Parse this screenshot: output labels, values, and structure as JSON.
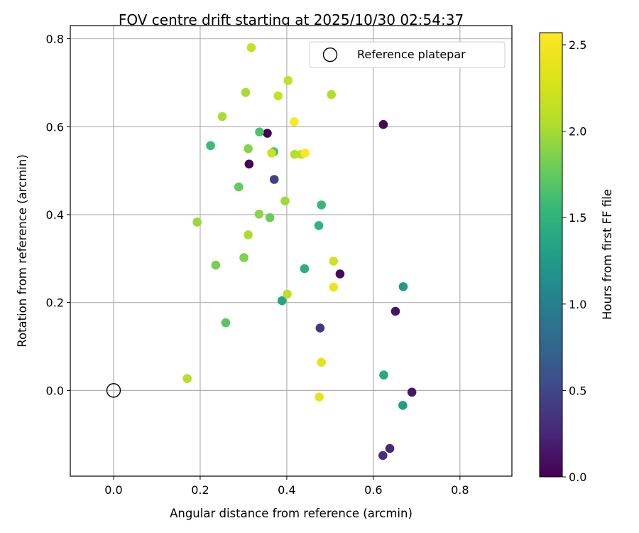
{
  "chart_data": {
    "type": "scatter",
    "title": "FOV centre drift starting at 2025/10/30 02:54:37",
    "xlabel": "Angular distance from reference (arcmin)",
    "ylabel": "Rotation from reference (arcmin)",
    "xlim": [
      -0.1,
      0.92
    ],
    "ylim": [
      -0.195,
      0.83
    ],
    "xticks": [
      0.0,
      0.2,
      0.4,
      0.6,
      0.8
    ],
    "xtick_labels": [
      "0.0",
      "0.2",
      "0.4",
      "0.6",
      "0.8"
    ],
    "yticks": [
      0.0,
      0.2,
      0.4,
      0.6,
      0.8
    ],
    "ytick_labels": [
      "0.0",
      "0.2",
      "0.4",
      "0.6",
      "0.8"
    ],
    "grid": true,
    "legend": {
      "placement": "top-right",
      "entries": [
        "Reference platepar"
      ]
    },
    "reference_point": {
      "x": 0.0,
      "y": 0.0,
      "label": "Reference platepar"
    },
    "colorbar": {
      "label": "Hours from first FF file",
      "colormap": "viridis",
      "range": [
        0.0,
        2.57
      ],
      "ticks": [
        0.0,
        0.5,
        1.0,
        1.5,
        2.0,
        2.5
      ],
      "tick_labels": [
        "0.0",
        "0.5",
        "1.0",
        "1.5",
        "2.0",
        "2.5"
      ]
    },
    "points": [
      {
        "x": 0.355,
        "y": 0.585,
        "c": 0.0
      },
      {
        "x": 0.313,
        "y": 0.515,
        "c": 0.02
      },
      {
        "x": 0.623,
        "y": 0.605,
        "c": 0.05
      },
      {
        "x": 0.523,
        "y": 0.265,
        "c": 0.08
      },
      {
        "x": 0.651,
        "y": 0.18,
        "c": 0.12
      },
      {
        "x": 0.689,
        "y": -0.004,
        "c": 0.15
      },
      {
        "x": 0.638,
        "y": -0.132,
        "c": 0.25
      },
      {
        "x": 0.622,
        "y": -0.148,
        "c": 0.32
      },
      {
        "x": 0.477,
        "y": 0.142,
        "c": 0.38
      },
      {
        "x": 0.371,
        "y": 0.48,
        "c": 0.45
      },
      {
        "x": 0.668,
        "y": -0.034,
        "c": 1.3
      },
      {
        "x": 0.669,
        "y": 0.236,
        "c": 1.25
      },
      {
        "x": 0.624,
        "y": 0.035,
        "c": 1.4
      },
      {
        "x": 0.389,
        "y": 0.204,
        "c": 1.35
      },
      {
        "x": 0.441,
        "y": 0.277,
        "c": 1.45
      },
      {
        "x": 0.474,
        "y": 0.375,
        "c": 1.5
      },
      {
        "x": 0.48,
        "y": 0.422,
        "c": 1.55
      },
      {
        "x": 0.224,
        "y": 0.557,
        "c": 1.58
      },
      {
        "x": 0.37,
        "y": 0.543,
        "c": 1.6
      },
      {
        "x": 0.337,
        "y": 0.588,
        "c": 1.65
      },
      {
        "x": 0.259,
        "y": 0.154,
        "c": 1.7
      },
      {
        "x": 0.289,
        "y": 0.463,
        "c": 1.75
      },
      {
        "x": 0.361,
        "y": 0.393,
        "c": 1.78
      },
      {
        "x": 0.236,
        "y": 0.285,
        "c": 1.82
      },
      {
        "x": 0.301,
        "y": 0.302,
        "c": 1.85
      },
      {
        "x": 0.311,
        "y": 0.55,
        "c": 1.88
      },
      {
        "x": 0.336,
        "y": 0.401,
        "c": 1.9
      },
      {
        "x": 0.193,
        "y": 0.383,
        "c": 1.95
      },
      {
        "x": 0.396,
        "y": 0.431,
        "c": 1.98
      },
      {
        "x": 0.305,
        "y": 0.678,
        "c": 2.0
      },
      {
        "x": 0.251,
        "y": 0.623,
        "c": 2.02
      },
      {
        "x": 0.311,
        "y": 0.354,
        "c": 2.03
      },
      {
        "x": 0.503,
        "y": 0.673,
        "c": 2.05
      },
      {
        "x": 0.17,
        "y": 0.027,
        "c": 2.07
      },
      {
        "x": 0.418,
        "y": 0.537,
        "c": 2.08
      },
      {
        "x": 0.433,
        "y": 0.537,
        "c": 2.1
      },
      {
        "x": 0.401,
        "y": 0.219,
        "c": 2.12
      },
      {
        "x": 0.403,
        "y": 0.705,
        "c": 2.14
      },
      {
        "x": 0.318,
        "y": 0.78,
        "c": 2.15
      },
      {
        "x": 0.38,
        "y": 0.67,
        "c": 2.18
      },
      {
        "x": 0.365,
        "y": 0.54,
        "c": 2.2
      },
      {
        "x": 0.508,
        "y": 0.294,
        "c": 2.22
      },
      {
        "x": 0.48,
        "y": 0.064,
        "c": 2.35
      },
      {
        "x": 0.475,
        "y": -0.015,
        "c": 2.38
      },
      {
        "x": 0.508,
        "y": 0.235,
        "c": 2.42
      },
      {
        "x": 0.417,
        "y": 0.611,
        "c": 2.55
      },
      {
        "x": 0.442,
        "y": 0.54,
        "c": 2.57
      }
    ]
  }
}
